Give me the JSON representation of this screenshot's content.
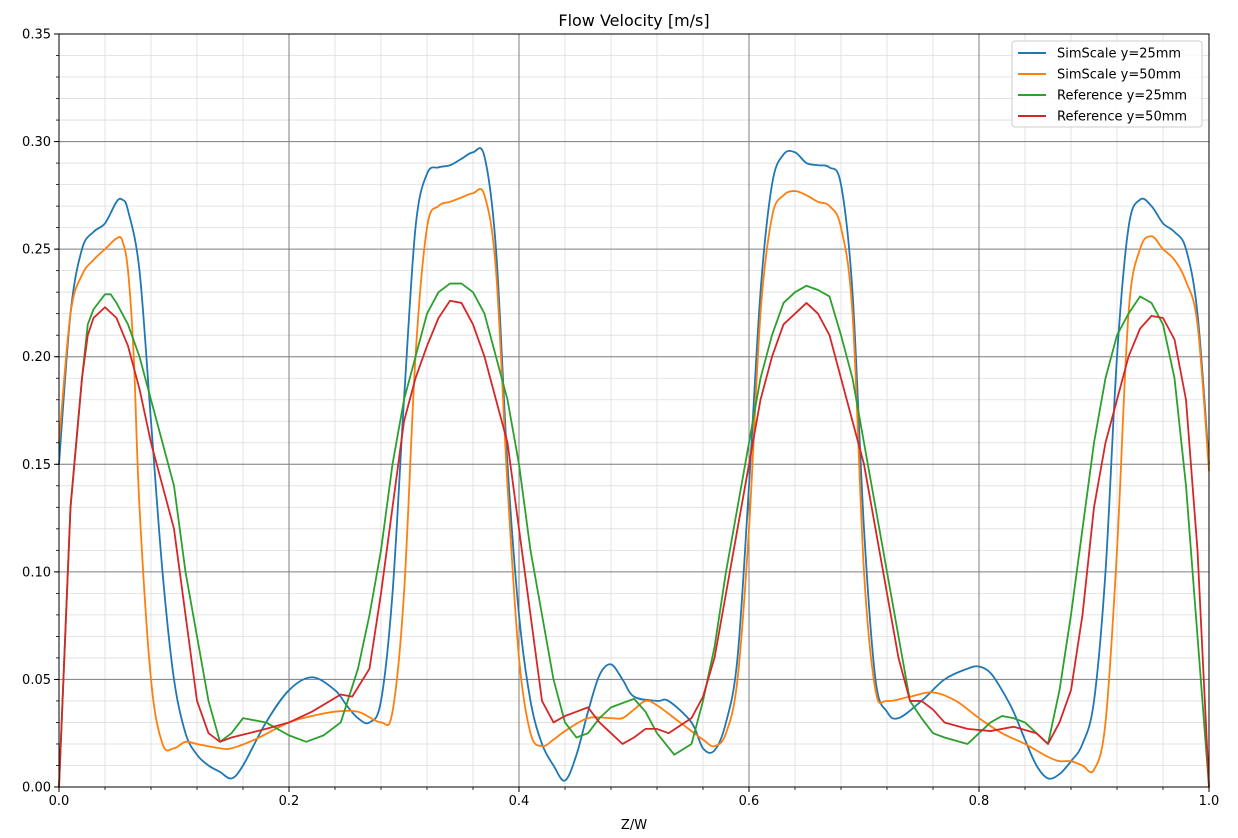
{
  "chart_data": {
    "type": "line",
    "title": "Flow Velocity [m/s]",
    "xlabel": "Z/W",
    "ylabel": "",
    "xlim": [
      0,
      1
    ],
    "ylim": [
      0,
      0.35
    ],
    "xticks": [
      "0.0",
      "0.2",
      "0.4",
      "0.6",
      "0.8",
      "1.0"
    ],
    "yticks": [
      "0.00",
      "0.05",
      "0.10",
      "0.15",
      "0.20",
      "0.25",
      "0.30",
      "0.35"
    ],
    "grid": "major and minor",
    "legend_position": "top-right",
    "series": [
      {
        "name": "SimScale y=25mm",
        "color": "#1f77b4",
        "x": [
          0,
          0.01,
          0.02,
          0.03,
          0.04,
          0.05,
          0.055,
          0.06,
          0.07,
          0.08,
          0.09,
          0.1,
          0.11,
          0.12,
          0.13,
          0.14,
          0.15,
          0.16,
          0.18,
          0.2,
          0.22,
          0.24,
          0.25,
          0.26,
          0.27,
          0.28,
          0.29,
          0.3,
          0.31,
          0.32,
          0.33,
          0.34,
          0.35,
          0.36,
          0.37,
          0.38,
          0.39,
          0.4,
          0.41,
          0.42,
          0.43,
          0.44,
          0.45,
          0.46,
          0.47,
          0.48,
          0.49,
          0.5,
          0.52,
          0.53,
          0.55,
          0.56,
          0.57,
          0.58,
          0.59,
          0.6,
          0.61,
          0.62,
          0.63,
          0.64,
          0.65,
          0.66,
          0.67,
          0.68,
          0.69,
          0.7,
          0.71,
          0.72,
          0.73,
          0.75,
          0.77,
          0.79,
          0.8,
          0.81,
          0.82,
          0.83,
          0.84,
          0.85,
          0.86,
          0.87,
          0.88,
          0.89,
          0.9,
          0.91,
          0.92,
          0.93,
          0.94,
          0.95,
          0.96,
          0.97,
          0.98,
          0.99,
          1.0
        ],
        "y": [
          0.15,
          0.22,
          0.25,
          0.258,
          0.262,
          0.272,
          0.273,
          0.268,
          0.24,
          0.17,
          0.1,
          0.05,
          0.025,
          0.015,
          0.01,
          0.007,
          0.004,
          0.01,
          0.03,
          0.045,
          0.051,
          0.045,
          0.038,
          0.032,
          0.03,
          0.04,
          0.09,
          0.18,
          0.26,
          0.285,
          0.288,
          0.289,
          0.292,
          0.295,
          0.293,
          0.25,
          0.15,
          0.08,
          0.04,
          0.02,
          0.01,
          0.003,
          0.015,
          0.035,
          0.052,
          0.057,
          0.05,
          0.042,
          0.04,
          0.04,
          0.03,
          0.018,
          0.017,
          0.03,
          0.06,
          0.14,
          0.23,
          0.28,
          0.294,
          0.295,
          0.29,
          0.289,
          0.288,
          0.28,
          0.23,
          0.12,
          0.05,
          0.035,
          0.032,
          0.04,
          0.05,
          0.055,
          0.056,
          0.053,
          0.045,
          0.035,
          0.022,
          0.01,
          0.004,
          0.006,
          0.012,
          0.02,
          0.04,
          0.1,
          0.2,
          0.26,
          0.273,
          0.27,
          0.262,
          0.258,
          0.25,
          0.22,
          0.15
        ]
      },
      {
        "name": "SimScale y=50mm",
        "color": "#ff7f0e",
        "x": [
          0,
          0.01,
          0.02,
          0.03,
          0.04,
          0.05,
          0.055,
          0.06,
          0.065,
          0.07,
          0.08,
          0.09,
          0.1,
          0.11,
          0.12,
          0.14,
          0.15,
          0.17,
          0.2,
          0.22,
          0.24,
          0.26,
          0.28,
          0.29,
          0.3,
          0.31,
          0.32,
          0.33,
          0.34,
          0.35,
          0.36,
          0.37,
          0.38,
          0.39,
          0.4,
          0.41,
          0.42,
          0.43,
          0.44,
          0.46,
          0.48,
          0.49,
          0.5,
          0.51,
          0.52,
          0.54,
          0.56,
          0.57,
          0.58,
          0.59,
          0.6,
          0.61,
          0.62,
          0.63,
          0.64,
          0.65,
          0.66,
          0.67,
          0.68,
          0.69,
          0.7,
          0.71,
          0.72,
          0.74,
          0.76,
          0.78,
          0.8,
          0.82,
          0.84,
          0.86,
          0.87,
          0.88,
          0.89,
          0.9,
          0.91,
          0.92,
          0.93,
          0.94,
          0.95,
          0.96,
          0.97,
          0.98,
          0.99,
          1.0
        ],
        "y": [
          0.16,
          0.22,
          0.238,
          0.245,
          0.25,
          0.255,
          0.254,
          0.24,
          0.2,
          0.13,
          0.05,
          0.02,
          0.018,
          0.021,
          0.02,
          0.018,
          0.018,
          0.022,
          0.03,
          0.033,
          0.035,
          0.035,
          0.03,
          0.035,
          0.09,
          0.2,
          0.26,
          0.27,
          0.272,
          0.274,
          0.276,
          0.275,
          0.24,
          0.14,
          0.06,
          0.025,
          0.019,
          0.022,
          0.026,
          0.032,
          0.032,
          0.032,
          0.036,
          0.04,
          0.038,
          0.03,
          0.022,
          0.019,
          0.025,
          0.05,
          0.12,
          0.22,
          0.265,
          0.275,
          0.277,
          0.275,
          0.272,
          0.27,
          0.26,
          0.22,
          0.1,
          0.045,
          0.04,
          0.042,
          0.044,
          0.04,
          0.032,
          0.025,
          0.02,
          0.014,
          0.012,
          0.012,
          0.01,
          0.008,
          0.03,
          0.11,
          0.22,
          0.25,
          0.256,
          0.25,
          0.245,
          0.235,
          0.215,
          0.147
        ]
      },
      {
        "name": "Reference y=25mm",
        "color": "#2ca02c",
        "x": [
          0,
          0.01,
          0.02,
          0.025,
          0.03,
          0.04,
          0.045,
          0.05,
          0.06,
          0.07,
          0.08,
          0.09,
          0.1,
          0.11,
          0.12,
          0.13,
          0.14,
          0.15,
          0.16,
          0.18,
          0.2,
          0.215,
          0.23,
          0.245,
          0.26,
          0.27,
          0.28,
          0.29,
          0.3,
          0.31,
          0.32,
          0.33,
          0.34,
          0.35,
          0.36,
          0.37,
          0.38,
          0.39,
          0.4,
          0.41,
          0.42,
          0.43,
          0.44,
          0.45,
          0.46,
          0.47,
          0.48,
          0.5,
          0.51,
          0.52,
          0.535,
          0.55,
          0.56,
          0.57,
          0.58,
          0.59,
          0.6,
          0.61,
          0.62,
          0.63,
          0.64,
          0.65,
          0.66,
          0.67,
          0.68,
          0.69,
          0.7,
          0.71,
          0.72,
          0.73,
          0.74,
          0.75,
          0.76,
          0.77,
          0.79,
          0.8,
          0.81,
          0.82,
          0.83,
          0.84,
          0.86,
          0.87,
          0.88,
          0.89,
          0.9,
          0.91,
          0.92,
          0.93,
          0.94,
          0.95,
          0.96,
          0.97,
          0.98,
          0.99,
          1.0
        ],
        "y": [
          0.0,
          0.13,
          0.19,
          0.215,
          0.222,
          0.229,
          0.229,
          0.225,
          0.215,
          0.2,
          0.18,
          0.16,
          0.14,
          0.1,
          0.07,
          0.04,
          0.021,
          0.025,
          0.032,
          0.03,
          0.024,
          0.021,
          0.024,
          0.03,
          0.055,
          0.08,
          0.11,
          0.15,
          0.18,
          0.2,
          0.22,
          0.23,
          0.234,
          0.234,
          0.23,
          0.22,
          0.2,
          0.18,
          0.15,
          0.11,
          0.08,
          0.05,
          0.03,
          0.023,
          0.025,
          0.032,
          0.037,
          0.041,
          0.035,
          0.025,
          0.015,
          0.02,
          0.04,
          0.065,
          0.1,
          0.13,
          0.16,
          0.19,
          0.21,
          0.225,
          0.23,
          0.233,
          0.231,
          0.228,
          0.21,
          0.19,
          0.16,
          0.13,
          0.1,
          0.07,
          0.04,
          0.032,
          0.025,
          0.023,
          0.02,
          0.025,
          0.03,
          0.033,
          0.032,
          0.03,
          0.02,
          0.045,
          0.08,
          0.12,
          0.16,
          0.19,
          0.21,
          0.22,
          0.228,
          0.225,
          0.215,
          0.19,
          0.14,
          0.07,
          0.0
        ]
      },
      {
        "name": "Reference y=50mm",
        "color": "#d62728",
        "x": [
          0,
          0.01,
          0.02,
          0.025,
          0.03,
          0.04,
          0.05,
          0.06,
          0.07,
          0.08,
          0.09,
          0.1,
          0.11,
          0.12,
          0.13,
          0.14,
          0.15,
          0.18,
          0.2,
          0.22,
          0.245,
          0.255,
          0.27,
          0.28,
          0.29,
          0.3,
          0.31,
          0.32,
          0.33,
          0.34,
          0.35,
          0.36,
          0.37,
          0.38,
          0.39,
          0.4,
          0.41,
          0.42,
          0.43,
          0.44,
          0.45,
          0.46,
          0.47,
          0.48,
          0.49,
          0.5,
          0.51,
          0.52,
          0.53,
          0.55,
          0.56,
          0.57,
          0.58,
          0.59,
          0.6,
          0.61,
          0.62,
          0.63,
          0.64,
          0.65,
          0.66,
          0.67,
          0.68,
          0.69,
          0.7,
          0.71,
          0.72,
          0.73,
          0.74,
          0.75,
          0.76,
          0.77,
          0.79,
          0.81,
          0.83,
          0.85,
          0.86,
          0.87,
          0.88,
          0.89,
          0.9,
          0.91,
          0.92,
          0.93,
          0.94,
          0.95,
          0.96,
          0.97,
          0.98,
          0.99,
          1.0
        ],
        "y": [
          0.0,
          0.13,
          0.19,
          0.21,
          0.218,
          0.223,
          0.218,
          0.205,
          0.185,
          0.16,
          0.14,
          0.12,
          0.08,
          0.04,
          0.025,
          0.021,
          0.023,
          0.027,
          0.03,
          0.035,
          0.043,
          0.042,
          0.055,
          0.09,
          0.13,
          0.17,
          0.19,
          0.205,
          0.218,
          0.226,
          0.225,
          0.215,
          0.2,
          0.18,
          0.16,
          0.12,
          0.08,
          0.04,
          0.03,
          0.033,
          0.035,
          0.037,
          0.03,
          0.025,
          0.02,
          0.023,
          0.027,
          0.027,
          0.025,
          0.032,
          0.042,
          0.06,
          0.09,
          0.12,
          0.15,
          0.18,
          0.2,
          0.215,
          0.22,
          0.225,
          0.22,
          0.21,
          0.19,
          0.17,
          0.15,
          0.12,
          0.09,
          0.06,
          0.04,
          0.04,
          0.036,
          0.03,
          0.027,
          0.026,
          0.028,
          0.025,
          0.02,
          0.03,
          0.045,
          0.08,
          0.13,
          0.16,
          0.18,
          0.2,
          0.213,
          0.219,
          0.218,
          0.208,
          0.18,
          0.11,
          0.0
        ]
      }
    ]
  }
}
